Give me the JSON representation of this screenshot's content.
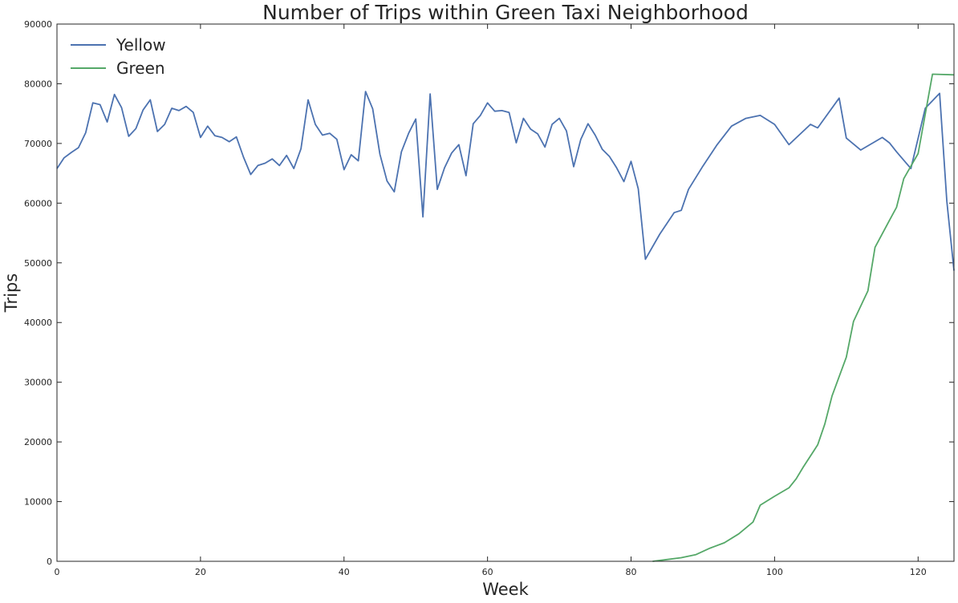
{
  "chart_data": {
    "type": "line",
    "title": "Number of Trips within Green Taxi Neighborhood",
    "xlabel": "Week",
    "ylabel": "Trips",
    "xlim": [
      0,
      125
    ],
    "ylim": [
      0,
      90000
    ],
    "xticks": [
      0,
      20,
      40,
      60,
      80,
      100,
      120
    ],
    "yticks": [
      0,
      10000,
      20000,
      30000,
      40000,
      50000,
      60000,
      70000,
      80000,
      90000
    ],
    "grid": false,
    "legend": "top-left",
    "series": [
      {
        "name": "Yellow",
        "color": "#4c72b0",
        "x": [
          0,
          1,
          2,
          3,
          4,
          5,
          6,
          7,
          8,
          9,
          10,
          11,
          12,
          13,
          14,
          15,
          16,
          17,
          18,
          19,
          20,
          21,
          22,
          23,
          24,
          25,
          26,
          27,
          28,
          29,
          30,
          31,
          32,
          33,
          34,
          35,
          36,
          37,
          38,
          39,
          40,
          41,
          42,
          43,
          44,
          45,
          46,
          47,
          48,
          49,
          50,
          51,
          52,
          53,
          54,
          55,
          56,
          57,
          58,
          59,
          60,
          61,
          62,
          63,
          64,
          65,
          66,
          67,
          68,
          69,
          70,
          71,
          72,
          73,
          74,
          75,
          76,
          77,
          78,
          79,
          80,
          81,
          82,
          84,
          86,
          87,
          88,
          90,
          92,
          94,
          96,
          98,
          100,
          102,
          105,
          106,
          109,
          110,
          112,
          115,
          116,
          117,
          119,
          121,
          123,
          124,
          125
        ],
        "values": [
          65800,
          67600,
          68500,
          69300,
          71800,
          76800,
          76500,
          73600,
          78200,
          76000,
          71200,
          72500,
          75600,
          77300,
          72000,
          73200,
          75900,
          75500,
          76200,
          75200,
          71000,
          72900,
          71300,
          71000,
          70300,
          71100,
          67700,
          64800,
          66300,
          66700,
          67400,
          66300,
          68000,
          65800,
          69100,
          77300,
          73200,
          71400,
          71700,
          70700,
          65600,
          68100,
          67100,
          78700,
          75800,
          68200,
          63700,
          61900,
          68600,
          71700,
          74100,
          57700,
          78300,
          62300,
          65900,
          68400,
          69800,
          64600,
          73300,
          74700,
          76800,
          75400,
          75500,
          75200,
          70100,
          74200,
          72400,
          71600,
          69400,
          73200,
          74200,
          72100,
          66100,
          70700,
          73300,
          71400,
          69000,
          67800,
          65900,
          63600,
          67000,
          62400,
          50600,
          54800,
          58400,
          58800,
          62300,
          66200,
          69800,
          72900,
          74200,
          74700,
          73200,
          69800,
          73200,
          72600,
          77600,
          70900,
          68900,
          71000,
          70100,
          68600,
          65800,
          75900,
          78400,
          60300,
          48700
        ]
      },
      {
        "name": "Green",
        "color": "#55a868",
        "x": [
          83,
          85,
          87,
          89,
          91,
          93,
          95,
          97,
          98,
          100,
          102,
          103,
          104,
          106,
          107,
          108,
          110,
          111,
          113,
          114,
          116,
          117,
          118,
          119,
          120,
          122,
          125
        ],
        "values": [
          0,
          300,
          600,
          1100,
          2200,
          3100,
          4600,
          6600,
          9400,
          10900,
          12300,
          13800,
          15800,
          19500,
          23000,
          27700,
          34200,
          40200,
          45300,
          52600,
          57100,
          59300,
          64100,
          66200,
          68300,
          81600,
          81500
        ]
      }
    ]
  }
}
